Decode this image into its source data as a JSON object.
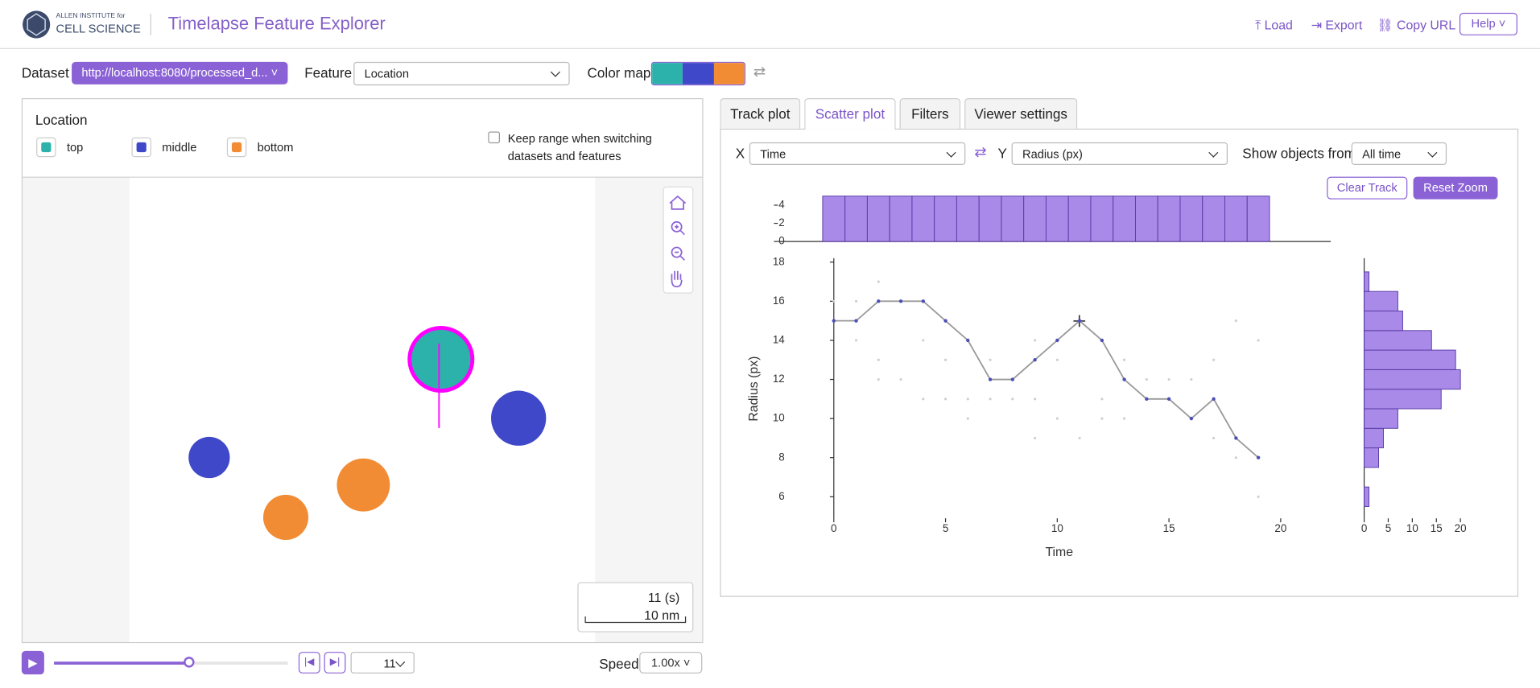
{
  "header": {
    "org_line1": "ALLEN INSTITUTE for",
    "org_line2": "CELL SCIENCE",
    "title": "Timelapse Feature Explorer",
    "actions": [
      "Load",
      "Export",
      "Copy URL",
      "Help"
    ]
  },
  "toolbar": {
    "dataset_label": "Dataset",
    "dataset_value": "http://localhost:8080/processed_d...",
    "feature_label": "Feature",
    "feature_value": "Location",
    "colormap_label": "Color map",
    "colormap_colors": [
      "#2cb1ab",
      "#3e48c8",
      "#f28c34"
    ]
  },
  "legend": {
    "title": "Location",
    "items": [
      {
        "label": "top",
        "color": "#2cb1ab"
      },
      {
        "label": "middle",
        "color": "#3e48c8"
      },
      {
        "label": "bottom",
        "color": "#f28c34"
      }
    ],
    "keep_range_line1": "Keep range when switching",
    "keep_range_line2": "datasets and features"
  },
  "viewer": {
    "time": "11 (s)",
    "scale": "10 nm"
  },
  "playback": {
    "frame": "11",
    "speed_label": "Speed",
    "speed_value": "1.00x"
  },
  "tabs": [
    "Track plot",
    "Scatter plot",
    "Filters",
    "Viewer settings"
  ],
  "plot_controls": {
    "x_label": "X",
    "x_value": "Time",
    "y_label": "Y",
    "y_value": "Radius (px)",
    "show_label": "Show objects from",
    "show_value": "All time",
    "clear": "Clear Track",
    "reset": "Reset Zoom"
  },
  "chart_data": {
    "type": "scatter",
    "x_label": "Time",
    "y_label": "Radius (px)",
    "xlim": [
      0,
      20
    ],
    "ylim": [
      6,
      18
    ],
    "xticks": [
      0,
      5,
      10,
      15,
      20
    ],
    "yticks": [
      6,
      8,
      10,
      12,
      14,
      16,
      18
    ],
    "track": {
      "color": "#4b4fb8",
      "line_color": "#9a9a9a",
      "x": [
        0,
        1,
        2,
        3,
        4,
        5,
        6,
        7,
        8,
        9,
        10,
        11,
        12,
        13,
        14,
        15,
        16,
        17,
        18,
        19
      ],
      "y": [
        15,
        15,
        16,
        16,
        16,
        15,
        14,
        12,
        12,
        13,
        14,
        15,
        14,
        12,
        11,
        11,
        10,
        11,
        9,
        8
      ]
    },
    "background": {
      "color": "#cfcfcf",
      "x": [
        0,
        1,
        1,
        2,
        2,
        3,
        4,
        5,
        5,
        6,
        6,
        7,
        8,
        9,
        9,
        10,
        10,
        11,
        12,
        13,
        13,
        14,
        15,
        16,
        17,
        18,
        18,
        19,
        19,
        2,
        7,
        12,
        17,
        4,
        9,
        14
      ],
      "y": [
        16,
        16,
        14,
        17,
        13,
        12,
        14,
        13,
        11,
        11,
        10,
        13,
        11,
        14,
        11,
        13,
        10,
        9,
        11,
        13,
        10,
        12,
        12,
        12,
        13,
        15,
        8,
        14,
        6,
        12,
        11,
        10,
        9,
        11,
        9,
        11
      ]
    },
    "top_histogram": {
      "color": "#a98ae8",
      "ylim": [
        0,
        4
      ],
      "yticks": [
        0,
        2,
        4
      ],
      "bins": [
        -0.5,
        0.5,
        1.5,
        2.5,
        3.5,
        4.5,
        5.5,
        6.5,
        7.5,
        8.5,
        9.5,
        10.5,
        11.5,
        12.5,
        13.5,
        14.5,
        15.5,
        16.5,
        17.5,
        18.5,
        19.5
      ],
      "counts": [
        5,
        5,
        5,
        5,
        5,
        5,
        5,
        5,
        5,
        5,
        5,
        5,
        5,
        5,
        5,
        5,
        5,
        5,
        5,
        5
      ]
    },
    "right_histogram": {
      "color": "#a98ae8",
      "xlim": [
        0,
        20
      ],
      "xticks": [
        0,
        5,
        10,
        15,
        20
      ],
      "bins": [
        5.5,
        6.5,
        7.5,
        8.5,
        9.5,
        10.5,
        11.5,
        12.5,
        13.5,
        14.5,
        15.5,
        16.5,
        17.5
      ],
      "counts": [
        1,
        0,
        3,
        4,
        7,
        16,
        20,
        19,
        14,
        8,
        7,
        1
      ]
    }
  }
}
